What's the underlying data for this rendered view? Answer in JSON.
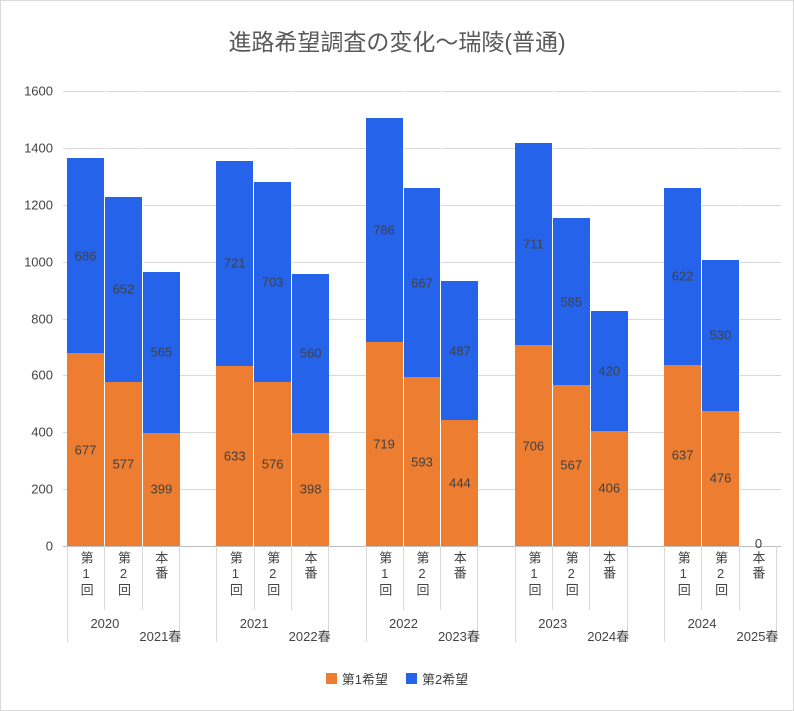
{
  "chart_data": {
    "type": "bar",
    "stacked": true,
    "title": "進路希望調査の変化〜瑞陵(普通)",
    "ylim": [
      0,
      1600
    ],
    "yticks": [
      0,
      200,
      400,
      600,
      800,
      1000,
      1200,
      1400,
      1600
    ],
    "grid": true,
    "legend_position": "bottom",
    "series": [
      {
        "name": "第1希望",
        "color": "#ED7D31"
      },
      {
        "name": "第2希望",
        "color": "#2563EB"
      }
    ],
    "groups": [
      {
        "survey_year": "2020",
        "exam_year": "2021春",
        "bars": [
          {
            "category": "第1回",
            "values": [
              677,
              686
            ]
          },
          {
            "category": "第2回",
            "values": [
              577,
              652
            ]
          },
          {
            "category": "本番",
            "values": [
              399,
              565
            ]
          }
        ]
      },
      {
        "survey_year": "2021",
        "exam_year": "2022春",
        "bars": [
          {
            "category": "第1回",
            "values": [
              633,
              721
            ]
          },
          {
            "category": "第2回",
            "values": [
              576,
              703
            ]
          },
          {
            "category": "本番",
            "values": [
              398,
              560
            ]
          }
        ]
      },
      {
        "survey_year": "2022",
        "exam_year": "2023春",
        "bars": [
          {
            "category": "第1回",
            "values": [
              719,
              786
            ]
          },
          {
            "category": "第2回",
            "values": [
              593,
              667
            ]
          },
          {
            "category": "本番",
            "values": [
              444,
              487
            ]
          }
        ]
      },
      {
        "survey_year": "2023",
        "exam_year": "2024春",
        "bars": [
          {
            "category": "第1回",
            "values": [
              706,
              711
            ]
          },
          {
            "category": "第2回",
            "values": [
              567,
              585
            ]
          },
          {
            "category": "本番",
            "values": [
              406,
              420
            ]
          }
        ]
      },
      {
        "survey_year": "2024",
        "exam_year": "2025春",
        "bars": [
          {
            "category": "第1回",
            "values": [
              637,
              622
            ]
          },
          {
            "category": "第2回",
            "values": [
              476,
              530
            ]
          },
          {
            "category": "本番",
            "values": [
              0,
              0
            ],
            "label": "0"
          }
        ]
      }
    ],
    "colors": {
      "grid": "#D9D9D9",
      "axis_line": "#BFBFBF",
      "axis_text": "#444444",
      "title_text": "#595959",
      "data_label": "#404040"
    }
  }
}
